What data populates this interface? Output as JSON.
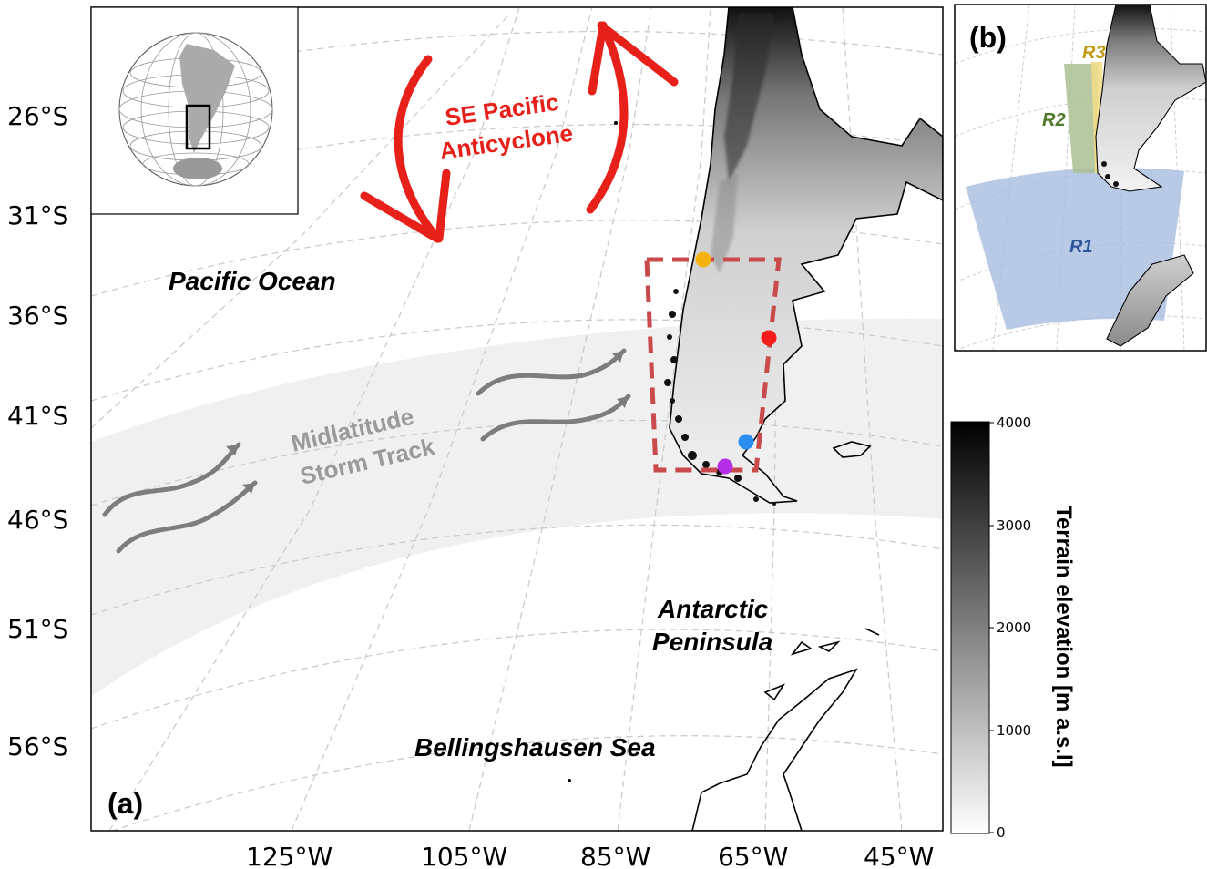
{
  "panel_a": {
    "label": "(a)",
    "lat_labels": [
      "26°S",
      "31°S",
      "36°S",
      "41°S",
      "46°S",
      "51°S",
      "56°S"
    ],
    "lon_labels": [
      "125°W",
      "105°W",
      "85°W",
      "65°W",
      "45°W"
    ],
    "places": {
      "pacific": "Pacific Ocean",
      "antarctic_line1": "Antarctic",
      "antarctic_line2": "Peninsula",
      "bellingshausen": "Bellingshausen Sea"
    },
    "storm_track": {
      "line1": "Midlatitude",
      "line2": "Storm Track"
    },
    "anticyclone": {
      "line1": "SE Pacific",
      "line2": "Anticyclone"
    },
    "station_colors": [
      "#f5b20f",
      "#f51c1c",
      "#2a8ef0",
      "#b42ee6"
    ],
    "box_color": "#c94a4a",
    "anticyclone_color": "#e8201a"
  },
  "colorbar": {
    "title": "Terrain elevation [m a.s.l]",
    "ticks": [
      "0",
      "1000",
      "2000",
      "3000",
      "4000"
    ],
    "range": [
      0,
      4000
    ]
  },
  "panel_b": {
    "label": "(b)",
    "regions": [
      {
        "name": "R1",
        "color": "#a6bde0",
        "text_color": "#2f5597"
      },
      {
        "name": "R2",
        "color": "#a9bf92",
        "text_color": "#4e7a2a"
      },
      {
        "name": "R3",
        "color": "#f2dc8a",
        "text_color": "#c09a10"
      }
    ]
  }
}
